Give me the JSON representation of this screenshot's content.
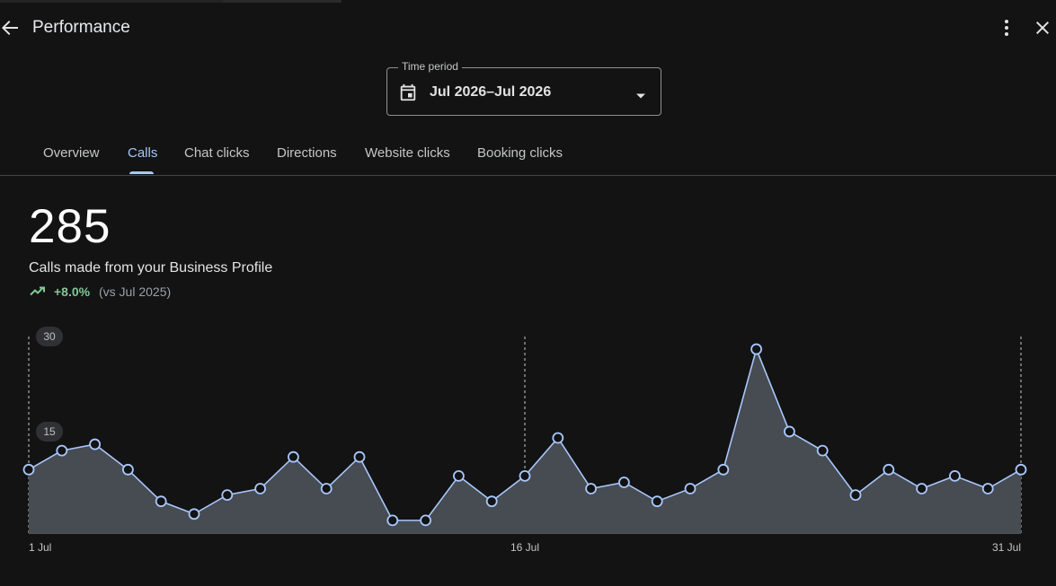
{
  "header": {
    "title": "Performance"
  },
  "period": {
    "label": "Time period",
    "value": "Jul 2026–Jul 2026"
  },
  "tabs": [
    {
      "label": "Overview",
      "active": false
    },
    {
      "label": "Calls",
      "active": true
    },
    {
      "label": "Chat clicks",
      "active": false
    },
    {
      "label": "Directions",
      "active": false
    },
    {
      "label": "Website clicks",
      "active": false
    },
    {
      "label": "Booking clicks",
      "active": false
    }
  ],
  "summary": {
    "total": "285",
    "label": "Calls made from your Business Profile",
    "change": "+8.0%",
    "comparison": "(vs Jul 2025)"
  },
  "colors": {
    "accent": "#a8c7fa",
    "positive": "#81c995",
    "area": "#474b52",
    "line": "#a8c7fa"
  },
  "chart_data": {
    "type": "area",
    "x": [
      "1 Jul",
      "2 Jul",
      "3 Jul",
      "4 Jul",
      "5 Jul",
      "6 Jul",
      "7 Jul",
      "8 Jul",
      "9 Jul",
      "10 Jul",
      "11 Jul",
      "12 Jul",
      "13 Jul",
      "14 Jul",
      "15 Jul",
      "16 Jul",
      "17 Jul",
      "18 Jul",
      "19 Jul",
      "20 Jul",
      "21 Jul",
      "22 Jul",
      "23 Jul",
      "24 Jul",
      "25 Jul",
      "26 Jul",
      "27 Jul",
      "28 Jul",
      "29 Jul",
      "30 Jul",
      "31 Jul"
    ],
    "values": [
      10,
      13,
      14,
      10,
      5,
      3,
      6,
      7,
      12,
      7,
      12,
      2,
      2,
      9,
      5,
      9,
      15,
      7,
      8,
      5,
      7,
      10,
      29,
      16,
      13,
      6,
      10,
      7,
      9,
      7,
      10
    ],
    "y_ticks": [
      "15",
      "30"
    ],
    "ylim": [
      0,
      30
    ],
    "x_tick_labels": [
      {
        "label": "1 Jul",
        "index": 0
      },
      {
        "label": "16 Jul",
        "index": 15
      },
      {
        "label": "31 Jul",
        "index": 30
      }
    ],
    "grid": true
  }
}
